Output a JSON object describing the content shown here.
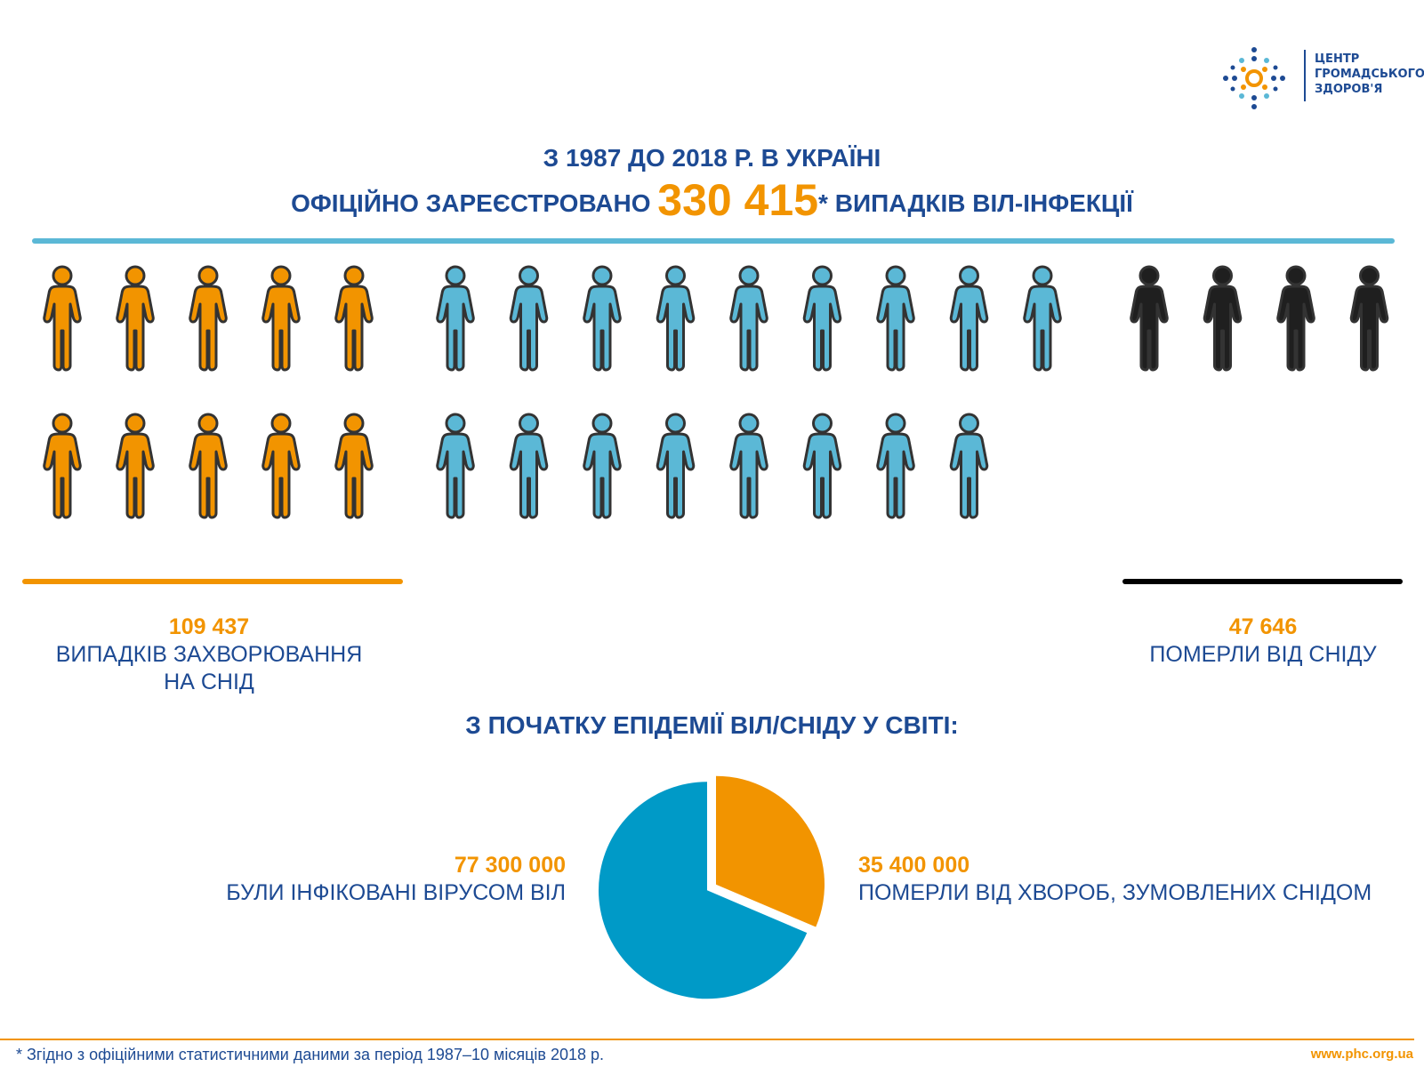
{
  "logo": {
    "lines": [
      "ЦЕНТР",
      "ГРОМАДСЬКОГО",
      "ЗДОРОВ'Я"
    ]
  },
  "header": {
    "line1": "З 1987 ДО 2018 Р. В УКРАЇНІ",
    "line2_prefix": "ОФІЦІЙНО ЗАРЕЄСТРОВАНО ",
    "total_cases": "330 415",
    "line2_suffix": "* ВИПАДКІВ ВІЛ-ІНФЕКЦІЇ"
  },
  "people_groups": [
    {
      "name": "aids-cases",
      "count": 10,
      "color": "#f29400"
    },
    {
      "name": "hiv-cases",
      "count": 17,
      "color": "#5bb8d6"
    },
    {
      "name": "aids-deaths",
      "count": 4,
      "color": "#1f1f1f"
    }
  ],
  "stats": {
    "aids_cases": {
      "value": "109 437",
      "label_1": "ВИПАДКІВ ЗАХВОРЮВАННЯ",
      "label_2": "НА СНІД"
    },
    "aids_deaths": {
      "value": "47 646",
      "label": "ПОМЕРЛИ ВІД СНІДУ"
    }
  },
  "world_title": "З ПОЧАТКУ ЕПІДЕМІЇ ВІЛ/СНІДУ У СВІТІ:",
  "chart_data": {
    "type": "pie",
    "slices": [
      {
        "value": 35400000,
        "display": "35 400 000",
        "label": "ПОМЕРЛИ ВІД ХВОРОБ, ЗУМОВЛЕНИХ СНІДОМ",
        "color": "#f29400"
      },
      {
        "value": 77300000,
        "display": "77 300 000",
        "label": "БУЛИ ІНФІКОВАНІ ВІРУСОМ ВІЛ",
        "color": "#009ac7"
      }
    ]
  },
  "footer": {
    "note": "* Згідно з офіційними статистичними даними за період 1987–10 місяців 2018 р.",
    "url": "www.phc.org.ua"
  }
}
